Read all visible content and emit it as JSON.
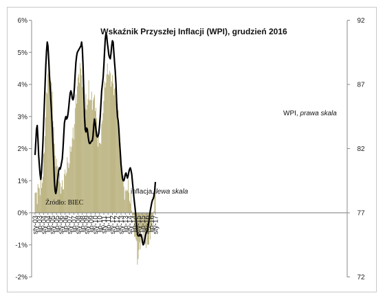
{
  "chart_data": {
    "type": "bar+line",
    "title": "Wskaźnik Przyszłej Inflacji (WPI), grudzień 2016",
    "source": "Źródło: BIEC",
    "annotations": {
      "wpi_label": "WPI,",
      "wpi_scale": "prawa skala",
      "inflation_label": "inflacja,",
      "inflation_scale": "lewa skala"
    },
    "colors": {
      "bars": "#a89e5e",
      "line": "#000000"
    },
    "left_axis": {
      "min": -2,
      "max": 6,
      "ticks": [
        "-2%",
        "-1%",
        "0%",
        "1%",
        "2%",
        "3%",
        "4%",
        "5%",
        "6%"
      ]
    },
    "right_axis": {
      "min": 72,
      "max": 92,
      "ticks": [
        "72",
        "77",
        "82",
        "87",
        "92"
      ]
    },
    "x_tick_labels": [
      "sty-03",
      "lip-03",
      "sty-04",
      "lip-04",
      "sty-05",
      "lip-05",
      "sty-06",
      "lip-06",
      "sty-07",
      "lip-07",
      "sty-08",
      "lip-08",
      "sty-09",
      "lip-09",
      "sty-10",
      "lip-10",
      "sty-11",
      "lip-11",
      "sty-12",
      "lip-12",
      "sty-13",
      "lip-13",
      "sty-14",
      "lip-14",
      "sty-15",
      "lip-15",
      "sty-16",
      "lip-16",
      "sty-17"
    ],
    "inflation_anchors": [
      [
        0,
        0.5
      ],
      [
        3,
        0.6
      ],
      [
        6,
        0.8
      ],
      [
        9,
        0.8
      ],
      [
        12,
        1.5
      ],
      [
        15,
        3.0
      ],
      [
        18,
        4.4
      ],
      [
        20,
        4.5
      ],
      [
        24,
        3.7
      ],
      [
        27,
        2.0
      ],
      [
        30,
        1.5
      ],
      [
        32,
        1.2
      ],
      [
        36,
        0.8
      ],
      [
        39,
        0.8
      ],
      [
        42,
        1.2
      ],
      [
        45,
        1.5
      ],
      [
        48,
        1.6
      ],
      [
        51,
        2.2
      ],
      [
        54,
        2.5
      ],
      [
        57,
        3.5
      ],
      [
        60,
        4.1
      ],
      [
        63,
        4.5
      ],
      [
        66,
        4.2
      ],
      [
        69,
        3.5
      ],
      [
        72,
        3.3
      ],
      [
        75,
        3.8
      ],
      [
        78,
        3.5
      ],
      [
        81,
        3.5
      ],
      [
        84,
        3.5
      ],
      [
        87,
        2.5
      ],
      [
        90,
        2.1
      ],
      [
        93,
        2.5
      ],
      [
        96,
        3.6
      ],
      [
        99,
        4.2
      ],
      [
        102,
        4.5
      ],
      [
        105,
        4.2
      ],
      [
        108,
        4.1
      ],
      [
        111,
        3.8
      ],
      [
        114,
        3.5
      ],
      [
        117,
        2.8
      ],
      [
        120,
        1.6
      ],
      [
        123,
        1.0
      ],
      [
        126,
        0.5
      ],
      [
        129,
        0.9
      ],
      [
        132,
        0.5
      ],
      [
        135,
        0.2
      ],
      [
        138,
        -0.3
      ],
      [
        141,
        -0.9
      ],
      [
        144,
        -1.5
      ],
      [
        147,
        -0.8
      ],
      [
        150,
        -0.5
      ],
      [
        153,
        -0.9
      ],
      [
        156,
        -0.9
      ],
      [
        159,
        -0.9
      ],
      [
        162,
        -0.5
      ],
      [
        165,
        -0.3
      ],
      [
        168,
        0.8
      ]
    ],
    "wpi_anchors": [
      [
        0,
        81.5
      ],
      [
        1,
        82.5
      ],
      [
        2,
        83.5
      ],
      [
        3,
        83.8
      ],
      [
        4,
        82.8
      ],
      [
        5,
        81.5
      ],
      [
        6,
        80.7
      ],
      [
        7,
        80.0
      ],
      [
        8,
        79.6
      ],
      [
        9,
        80.2
      ],
      [
        10,
        81.3
      ],
      [
        11,
        82.5
      ],
      [
        12,
        84.0
      ],
      [
        13,
        85.5
      ],
      [
        14,
        87.0
      ],
      [
        15,
        88.5
      ],
      [
        16,
        89.6
      ],
      [
        17,
        90.3
      ],
      [
        18,
        90.0
      ],
      [
        19,
        89.0
      ],
      [
        20,
        87.8
      ],
      [
        21,
        86.8
      ],
      [
        22,
        85.8
      ],
      [
        23,
        84.8
      ],
      [
        24,
        83.6
      ],
      [
        25,
        82.3
      ],
      [
        26,
        81.0
      ],
      [
        27,
        79.5
      ],
      [
        28,
        78.7
      ],
      [
        29,
        78.5
      ],
      [
        30,
        78.8
      ],
      [
        31,
        79.3
      ],
      [
        32,
        79.8
      ],
      [
        33,
        80.3
      ],
      [
        34,
        80.5
      ],
      [
        35,
        80.4
      ],
      [
        36,
        80.6
      ],
      [
        37,
        80.9
      ],
      [
        38,
        81.2
      ],
      [
        39,
        82.0
      ],
      [
        40,
        83.0
      ],
      [
        41,
        84.0
      ],
      [
        42,
        84.3
      ],
      [
        43,
        84.5
      ],
      [
        44,
        84.3
      ],
      [
        45,
        84.4
      ],
      [
        46,
        84.7
      ],
      [
        47,
        85.2
      ],
      [
        48,
        85.8
      ],
      [
        49,
        86.3
      ],
      [
        50,
        86.5
      ],
      [
        51,
        86.3
      ],
      [
        52,
        85.9
      ],
      [
        53,
        85.8
      ],
      [
        54,
        86.0
      ],
      [
        55,
        86.8
      ],
      [
        56,
        87.8
      ],
      [
        57,
        88.7
      ],
      [
        58,
        89.2
      ],
      [
        59,
        89.5
      ],
      [
        60,
        89.6
      ],
      [
        61,
        89.7
      ],
      [
        62,
        89.8
      ],
      [
        63,
        89.9
      ],
      [
        64,
        90.0
      ],
      [
        65,
        90.3
      ],
      [
        66,
        89.8
      ],
      [
        67,
        88.5
      ],
      [
        68,
        86.5
      ],
      [
        69,
        84.5
      ],
      [
        70,
        83.5
      ],
      [
        71,
        83.3
      ],
      [
        72,
        83.6
      ],
      [
        73,
        83.5
      ],
      [
        74,
        83.0
      ],
      [
        75,
        82.6
      ],
      [
        76,
        82.4
      ],
      [
        77,
        82.4
      ],
      [
        78,
        82.5
      ],
      [
        79,
        82.6
      ],
      [
        80,
        82.6
      ],
      [
        81,
        83.0
      ],
      [
        82,
        83.8
      ],
      [
        83,
        84.3
      ],
      [
        84,
        84.0
      ],
      [
        85,
        83.5
      ],
      [
        86,
        83.0
      ],
      [
        87,
        82.9
      ],
      [
        88,
        83.0
      ],
      [
        89,
        83.2
      ],
      [
        90,
        83.8
      ],
      [
        91,
        84.5
      ],
      [
        92,
        85.5
      ],
      [
        93,
        86.5
      ],
      [
        94,
        87.0
      ],
      [
        95,
        87.5
      ],
      [
        96,
        88.4
      ],
      [
        97,
        89.5
      ],
      [
        98,
        90.5
      ],
      [
        99,
        91.0
      ],
      [
        100,
        90.8
      ],
      [
        101,
        90.2
      ],
      [
        102,
        89.8
      ],
      [
        103,
        89.3
      ],
      [
        104,
        89.1
      ],
      [
        105,
        89.0
      ],
      [
        106,
        89.4
      ],
      [
        107,
        90.0
      ],
      [
        108,
        90.4
      ],
      [
        109,
        90.3
      ],
      [
        110,
        89.5
      ],
      [
        111,
        88.7
      ],
      [
        112,
        88.0
      ],
      [
        113,
        87.0
      ],
      [
        114,
        85.5
      ],
      [
        115,
        84.5
      ],
      [
        116,
        84.2
      ],
      [
        117,
        83.5
      ],
      [
        118,
        82.5
      ],
      [
        119,
        81.7
      ],
      [
        120,
        80.8
      ],
      [
        121,
        80.2
      ],
      [
        122,
        79.7
      ],
      [
        123,
        79.5
      ],
      [
        124,
        79.5
      ],
      [
        125,
        79.7
      ],
      [
        126,
        80.0
      ],
      [
        127,
        80.1
      ],
      [
        128,
        79.9
      ],
      [
        129,
        79.7
      ],
      [
        130,
        79.9
      ],
      [
        131,
        80.2
      ],
      [
        132,
        80.4
      ],
      [
        133,
        80.5
      ],
      [
        134,
        80.3
      ],
      [
        135,
        80.0
      ],
      [
        136,
        79.4
      ],
      [
        137,
        78.8
      ],
      [
        138,
        78.2
      ],
      [
        139,
        77.7
      ],
      [
        140,
        77.2
      ],
      [
        141,
        76.5
      ],
      [
        142,
        75.8
      ],
      [
        143,
        75.3
      ],
      [
        144,
        75.2
      ],
      [
        145,
        75.2
      ],
      [
        146,
        75.3
      ],
      [
        147,
        75.2
      ],
      [
        148,
        75.3
      ],
      [
        149,
        75.1
      ],
      [
        150,
        74.7
      ],
      [
        151,
        74.5
      ],
      [
        152,
        74.6
      ],
      [
        153,
        74.9
      ],
      [
        154,
        75.2
      ],
      [
        155,
        75.4
      ],
      [
        156,
        75.5
      ],
      [
        157,
        75.7
      ],
      [
        158,
        76.0
      ],
      [
        159,
        76.4
      ],
      [
        160,
        76.8
      ],
      [
        161,
        77.2
      ],
      [
        162,
        77.5
      ],
      [
        163,
        77.8
      ],
      [
        164,
        78.0
      ],
      [
        165,
        78.1
      ],
      [
        166,
        78.3
      ],
      [
        167,
        78.7
      ],
      [
        168,
        79.4
      ]
    ]
  }
}
